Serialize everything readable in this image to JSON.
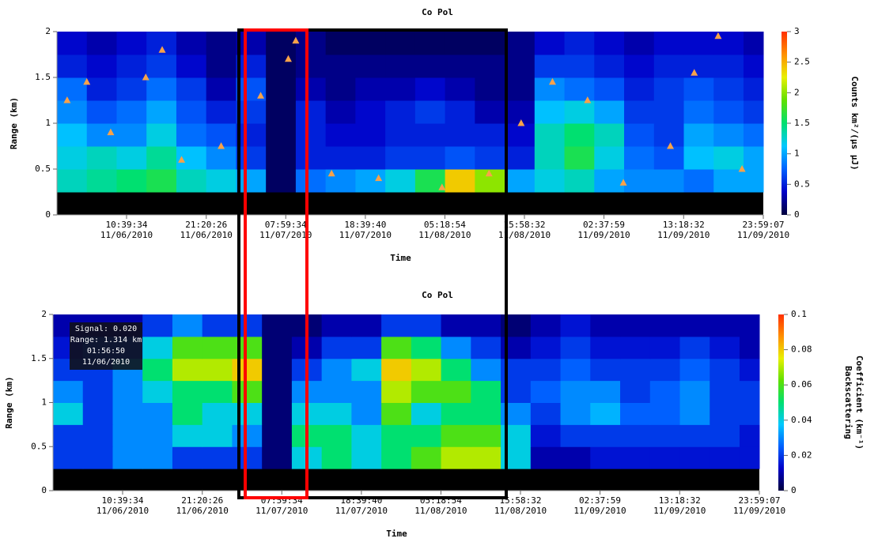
{
  "chart_data": [
    {
      "type": "heatmap",
      "title": "Co Pol",
      "xlabel": "Time",
      "ylabel": "Range (km)",
      "colorbar_label": "Counts km²/(μs μJ)",
      "colorscale": [
        "#00003c",
        "#0000c8",
        "#0060ff",
        "#00c8ff",
        "#00e070",
        "#60e000",
        "#e8f000",
        "#ff9000",
        "#ff3000"
      ],
      "xlim": [
        "2010-11-06T01:20:00",
        "2010-11-09T23:59:07"
      ],
      "xticks": [
        {
          "value": "2010-11-06T10:39:34",
          "label": [
            "10:39:34",
            "11/06/2010"
          ]
        },
        {
          "value": "2010-11-06T21:20:26",
          "label": [
            "21:20:26",
            "11/06/2010"
          ]
        },
        {
          "value": "2010-11-07T07:59:34",
          "label": [
            "07:59:34",
            "11/07/2010"
          ]
        },
        {
          "value": "2010-11-07T18:39:40",
          "label": [
            "18:39:40",
            "11/07/2010"
          ]
        },
        {
          "value": "2010-11-08T05:18:54",
          "label": [
            "05:18:54",
            "11/08/2010"
          ]
        },
        {
          "value": "2010-11-08T15:58:32",
          "label": [
            "15:58:32",
            "11/08/2010"
          ]
        },
        {
          "value": "2010-11-09T02:37:59",
          "label": [
            "02:37:59",
            "11/09/2010"
          ]
        },
        {
          "value": "2010-11-09T13:18:32",
          "label": [
            "13:18:32",
            "11/09/2010"
          ]
        },
        {
          "value": "2010-11-09T23:59:07",
          "label": [
            "23:59:07",
            "11/09/2010"
          ]
        }
      ],
      "ylim": [
        0,
        2
      ],
      "yticks": [
        0,
        0.5,
        1,
        1.5,
        2
      ],
      "zlim": [
        0,
        3
      ],
      "zticks": [
        0,
        0.5,
        1,
        1.5,
        2,
        2.5,
        3
      ],
      "x": [
        "2010-11-06T03:20:00",
        "2010-11-06T07:20:00",
        "2010-11-06T11:20:00",
        "2010-11-06T15:20:00",
        "2010-11-06T19:20:00",
        "2010-11-06T23:20:00",
        "2010-11-07T03:20:00",
        "2010-11-07T07:20:00",
        "2010-11-07T11:20:00",
        "2010-11-07T15:20:00",
        "2010-11-07T19:20:00",
        "2010-11-07T23:20:00",
        "2010-11-08T03:20:00",
        "2010-11-08T07:20:00",
        "2010-11-08T11:20:00",
        "2010-11-08T15:20:00",
        "2010-11-08T19:20:00",
        "2010-11-08T23:20:00",
        "2010-11-09T03:20:00",
        "2010-11-09T07:20:00",
        "2010-11-09T11:20:00",
        "2010-11-09T15:20:00",
        "2010-11-09T19:20:00",
        "2010-11-09T23:20:00"
      ],
      "y": [
        0.375,
        0.625,
        0.875,
        1.125,
        1.375,
        1.625,
        1.875
      ],
      "z": [
        [
          1.3,
          1.4,
          1.5,
          1.6,
          1.3,
          1.2,
          1.0,
          0.1,
          0.8,
          0.9,
          1.0,
          1.2,
          1.6,
          2.4,
          2.0,
          1.0,
          1.2,
          1.3,
          1.0,
          0.9,
          0.9,
          0.8,
          1.0,
          1.0
        ],
        [
          1.2,
          1.3,
          1.2,
          1.4,
          1.1,
          0.9,
          0.6,
          0.1,
          0.5,
          0.5,
          0.5,
          0.6,
          0.6,
          0.7,
          0.6,
          0.5,
          1.3,
          1.6,
          1.2,
          0.8,
          0.7,
          1.1,
          1.2,
          1.0
        ],
        [
          1.1,
          0.9,
          0.9,
          1.2,
          0.8,
          0.7,
          0.5,
          0.1,
          0.5,
          0.4,
          0.4,
          0.5,
          0.5,
          0.5,
          0.5,
          0.4,
          1.3,
          1.5,
          1.3,
          0.7,
          0.6,
          1.0,
          0.9,
          0.8
        ],
        [
          0.9,
          0.7,
          0.8,
          1.0,
          0.7,
          0.5,
          0.6,
          0.1,
          0.5,
          0.3,
          0.4,
          0.5,
          0.6,
          0.5,
          0.3,
          0.3,
          1.1,
          1.2,
          1.0,
          0.6,
          0.6,
          0.8,
          0.7,
          0.6
        ],
        [
          0.8,
          0.5,
          0.6,
          0.8,
          0.6,
          0.3,
          0.7,
          0.1,
          0.3,
          0.2,
          0.3,
          0.3,
          0.4,
          0.3,
          0.2,
          0.2,
          0.9,
          0.8,
          0.7,
          0.5,
          0.6,
          0.7,
          0.6,
          0.5
        ],
        [
          0.5,
          0.4,
          0.5,
          0.6,
          0.4,
          0.2,
          0.5,
          0.1,
          0.2,
          0.2,
          0.2,
          0.2,
          0.2,
          0.2,
          0.2,
          0.2,
          0.6,
          0.6,
          0.5,
          0.4,
          0.5,
          0.5,
          0.5,
          0.4
        ],
        [
          0.4,
          0.3,
          0.4,
          0.5,
          0.3,
          0.2,
          0.3,
          0.1,
          0.2,
          0.1,
          0.1,
          0.1,
          0.1,
          0.1,
          0.1,
          0.2,
          0.4,
          0.5,
          0.4,
          0.3,
          0.4,
          0.4,
          0.4,
          0.3
        ]
      ],
      "markers": {
        "color": "#f7a24a",
        "x": [
          "2010-11-06T02:42:00",
          "2010-11-06T05:20:00",
          "2010-11-06T08:32:00",
          "2010-11-06T13:14:00",
          "2010-11-06T15:26:00",
          "2010-11-06T18:02:00",
          "2010-11-06T23:20:00",
          "2010-11-07T04:38:00",
          "2010-11-07T08:20:00",
          "2010-11-07T09:20:00",
          "2010-11-07T14:08:00",
          "2010-11-07T20:26:00",
          "2010-11-08T04:56:00",
          "2010-11-08T11:14:00",
          "2010-11-08T15:32:00",
          "2010-11-08T19:44:00",
          "2010-11-09T00:26:00",
          "2010-11-09T05:14:00",
          "2010-11-09T11:32:00",
          "2010-11-09T14:44:00",
          "2010-11-09T17:56:00",
          "2010-11-09T21:08:00"
        ],
        "y": [
          1.25,
          1.45,
          0.9,
          1.5,
          1.8,
          0.6,
          0.75,
          1.3,
          1.7,
          1.9,
          0.45,
          0.4,
          0.3,
          0.45,
          1.0,
          1.45,
          1.25,
          0.35,
          0.75,
          1.55,
          1.95,
          0.5
        ]
      }
    },
    {
      "type": "heatmap",
      "title": "Co Pol",
      "xlabel": "Time",
      "ylabel": "Range (km)",
      "colorbar_label": [
        "Backscattering",
        "Coefficient (km⁻¹)"
      ],
      "colorscale": [
        "#00003c",
        "#0000c8",
        "#0060ff",
        "#00c8ff",
        "#00e070",
        "#60e000",
        "#e8f000",
        "#ff9000",
        "#ff3000"
      ],
      "annotation": [
        "Signal: 0.020",
        "Range: 1.314 km",
        "01:56:50",
        "11/06/2010"
      ],
      "xlim": [
        "2010-11-06T01:20:00",
        "2010-11-09T23:59:07"
      ],
      "xticks": [
        {
          "value": "2010-11-06T10:39:34",
          "label": [
            "10:39:34",
            "11/06/2010"
          ]
        },
        {
          "value": "2010-11-06T21:20:26",
          "label": [
            "21:20:26",
            "11/06/2010"
          ]
        },
        {
          "value": "2010-11-07T07:59:34",
          "label": [
            "07:59:34",
            "11/07/2010"
          ]
        },
        {
          "value": "2010-11-07T18:39:40",
          "label": [
            "18:39:40",
            "11/07/2010"
          ]
        },
        {
          "value": "2010-11-08T05:18:54",
          "label": [
            "05:18:54",
            "11/08/2010"
          ]
        },
        {
          "value": "2010-11-08T15:58:32",
          "label": [
            "15:58:32",
            "11/08/2010"
          ]
        },
        {
          "value": "2010-11-09T02:37:59",
          "label": [
            "02:37:59",
            "11/09/2010"
          ]
        },
        {
          "value": "2010-11-09T13:18:32",
          "label": [
            "13:18:32",
            "11/09/2010"
          ]
        },
        {
          "value": "2010-11-09T23:59:07",
          "label": [
            "23:59:07",
            "11/09/2010"
          ]
        }
      ],
      "ylim": [
        0,
        2
      ],
      "yticks": [
        0,
        0.5,
        1,
        1.5,
        2
      ],
      "zlim": [
        0,
        0.1
      ],
      "zticks": [
        0,
        0.02,
        0.04,
        0.06,
        0.08,
        0.1
      ],
      "x": [
        "2010-11-06T03:20:00",
        "2010-11-06T07:20:00",
        "2010-11-06T11:20:00",
        "2010-11-06T15:20:00",
        "2010-11-06T19:20:00",
        "2010-11-06T23:20:00",
        "2010-11-07T03:20:00",
        "2010-11-07T07:20:00",
        "2010-11-07T11:20:00",
        "2010-11-07T15:20:00",
        "2010-11-07T19:20:00",
        "2010-11-07T23:20:00",
        "2010-11-08T03:20:00",
        "2010-11-08T07:20:00",
        "2010-11-08T11:20:00",
        "2010-11-08T15:20:00",
        "2010-11-08T19:20:00",
        "2010-11-08T23:20:00",
        "2010-11-09T03:20:00",
        "2010-11-09T07:20:00",
        "2010-11-09T11:20:00",
        "2010-11-09T15:20:00",
        "2010-11-09T19:20:00",
        "2010-11-09T23:20:00"
      ],
      "y": [
        0.375,
        0.625,
        0.875,
        1.125,
        1.375,
        1.625,
        1.875
      ],
      "z": [
        [
          0.02,
          0.02,
          0.03,
          0.03,
          0.02,
          0.02,
          0.02,
          0.005,
          0.04,
          0.05,
          0.04,
          0.05,
          0.06,
          0.07,
          0.07,
          0.04,
          0.01,
          0.01,
          0.015,
          0.015,
          0.015,
          0.015,
          0.015,
          0.015
        ],
        [
          0.02,
          0.02,
          0.03,
          0.03,
          0.04,
          0.04,
          0.03,
          0.005,
          0.05,
          0.05,
          0.04,
          0.05,
          0.05,
          0.06,
          0.06,
          0.04,
          0.015,
          0.02,
          0.02,
          0.02,
          0.02,
          0.02,
          0.02,
          0.015
        ],
        [
          0.04,
          0.02,
          0.03,
          0.03,
          0.05,
          0.04,
          0.04,
          0.005,
          0.04,
          0.04,
          0.03,
          0.06,
          0.04,
          0.05,
          0.05,
          0.03,
          0.02,
          0.03,
          0.035,
          0.025,
          0.025,
          0.03,
          0.02,
          0.02
        ],
        [
          0.03,
          0.02,
          0.03,
          0.04,
          0.05,
          0.05,
          0.06,
          0.005,
          0.03,
          0.03,
          0.03,
          0.07,
          0.06,
          0.06,
          0.05,
          0.02,
          0.025,
          0.03,
          0.03,
          0.02,
          0.025,
          0.03,
          0.02,
          0.02
        ],
        [
          0.02,
          0.02,
          0.03,
          0.05,
          0.07,
          0.07,
          0.08,
          0.005,
          0.02,
          0.03,
          0.04,
          0.08,
          0.07,
          0.05,
          0.03,
          0.02,
          0.02,
          0.025,
          0.02,
          0.02,
          0.02,
          0.025,
          0.02,
          0.015
        ],
        [
          0.015,
          0.02,
          0.02,
          0.04,
          0.06,
          0.06,
          0.06,
          0.005,
          0.01,
          0.02,
          0.02,
          0.06,
          0.05,
          0.03,
          0.02,
          0.01,
          0.015,
          0.02,
          0.015,
          0.015,
          0.015,
          0.02,
          0.015,
          0.01
        ],
        [
          0.01,
          0.01,
          0.01,
          0.02,
          0.03,
          0.02,
          0.02,
          0.005,
          0.005,
          0.01,
          0.01,
          0.02,
          0.02,
          0.01,
          0.01,
          0.005,
          0.01,
          0.015,
          0.01,
          0.01,
          0.01,
          0.01,
          0.01,
          0.01
        ]
      ]
    }
  ]
}
